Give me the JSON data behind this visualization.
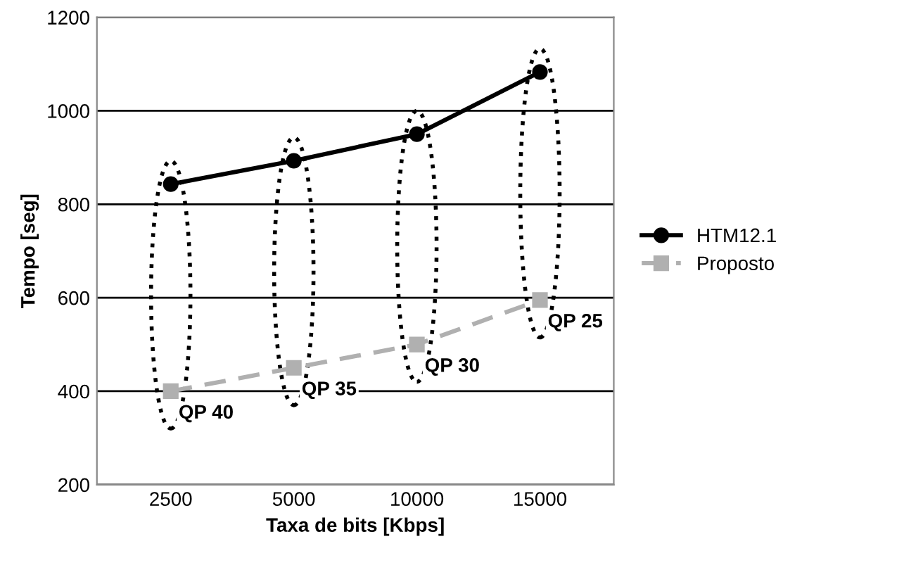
{
  "chart_data": {
    "type": "line",
    "xlabel": "Taxa de bits [Kbps]",
    "ylabel": "Tempo [seg]",
    "categories": [
      "2500",
      "5000",
      "10000",
      "15000"
    ],
    "series": [
      {
        "name": "HTM12.1",
        "color": "#000000",
        "values": [
          843,
          893,
          950,
          1083
        ],
        "marker": "circle",
        "line_style": "solid"
      },
      {
        "name": "Proposto",
        "color": "#b0b0b0",
        "values": [
          400,
          450,
          500,
          595
        ],
        "marker": "square",
        "line_style": "dashed"
      }
    ],
    "ylim": [
      200,
      1200
    ],
    "yticks": [
      200,
      400,
      600,
      800,
      1000,
      1200
    ],
    "grid": "y",
    "legend": "right",
    "annotations": [
      {
        "text": "QP 40",
        "x": "2500",
        "y": 400
      },
      {
        "text": "QP 35",
        "x": "5000",
        "y": 450
      },
      {
        "text": "QP 30",
        "x": "10000",
        "y": 500
      },
      {
        "text": "QP 25",
        "x": "15000",
        "y": 595
      }
    ]
  }
}
